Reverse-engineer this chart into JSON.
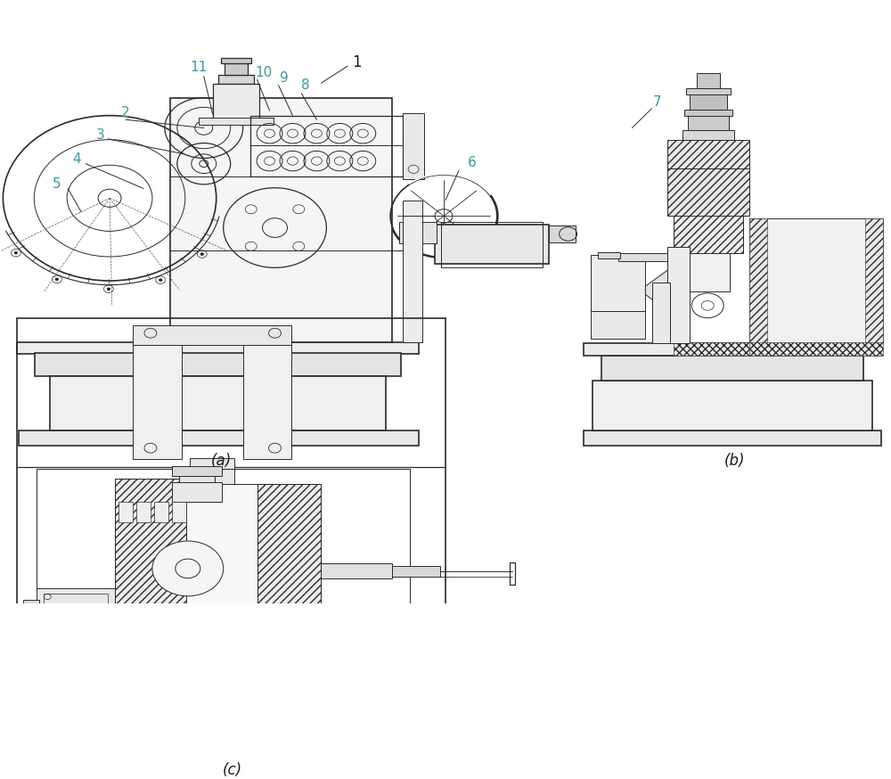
{
  "background_color": "#ffffff",
  "line_color": "#2a2a2a",
  "label_color_teal": "#3a9a9a",
  "label_color_dark": "#1a1a1a",
  "fig_width": 10.0,
  "fig_height": 8.74,
  "dpi": 100,
  "caption_a": "(a)",
  "caption_b": "(b)",
  "caption_c": "(c)",
  "teal_label_size": 11,
  "dark_label_size": 12,
  "caption_size": 12,
  "lw_main": 1.2,
  "lw_thin": 0.7,
  "lw_med": 0.9
}
